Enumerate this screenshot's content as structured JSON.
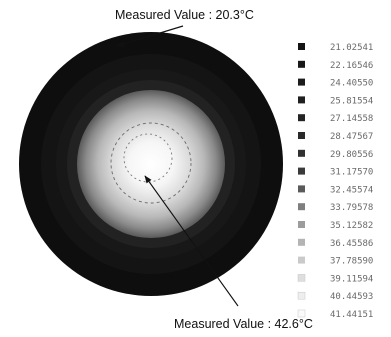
{
  "annotations": {
    "top_label": "Measured Value : 20.3°C",
    "bottom_label": "Measured Value : 42.6°C"
  },
  "legend": {
    "entries": [
      {
        "label": "21.02541",
        "color": "#141414"
      },
      {
        "label": "22.16546",
        "color": "#181818"
      },
      {
        "label": "24.40550",
        "color": "#1c1c1c"
      },
      {
        "label": "25.81554",
        "color": "#202020"
      },
      {
        "label": "27.14558",
        "color": "#242424"
      },
      {
        "label": "28.47567",
        "color": "#2a2a2a"
      },
      {
        "label": "29.80556",
        "color": "#303030"
      },
      {
        "label": "31.17570",
        "color": "#3a3a3a"
      },
      {
        "label": "32.45574",
        "color": "#5a5a5a"
      },
      {
        "label": "33.79578",
        "color": "#7e7e7e"
      },
      {
        "label": "35.12582",
        "color": "#9c9c9c"
      },
      {
        "label": "36.45586",
        "color": "#b4b4b4"
      },
      {
        "label": "37.78590",
        "color": "#cacaca"
      },
      {
        "label": "39.11594",
        "color": "#dedede"
      },
      {
        "label": "40.44593",
        "color": "#eeeeee"
      },
      {
        "label": "41.44151",
        "color": "#fafafa"
      }
    ]
  }
}
